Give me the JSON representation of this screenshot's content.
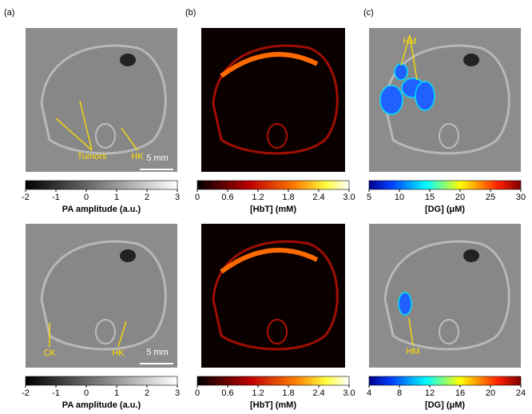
{
  "panel_labels": [
    "(a)",
    "(b)",
    "(c)"
  ],
  "rows": [
    {
      "panels": [
        {
          "annotations": [
            "Tumors",
            "HK"
          ],
          "scale_bar": "5 mm",
          "colorbar": {
            "ticks": [
              "-2",
              "-1",
              "0",
              "1",
              "2",
              "3"
            ],
            "label": "PA amplitude (a.u.)"
          }
        },
        {
          "colorbar": {
            "ticks": [
              "0",
              "0.6",
              "1.2",
              "1.8",
              "2.4",
              "3.0"
            ],
            "label": "[HbT]  (mM)"
          }
        },
        {
          "annotations": [
            "HM"
          ],
          "colorbar": {
            "ticks": [
              "5",
              "10",
              "15",
              "20",
              "25",
              "30"
            ],
            "label": "[DG]  (μM)"
          }
        }
      ]
    },
    {
      "panels": [
        {
          "annotations": [
            "CK",
            "HK"
          ],
          "scale_bar": "5 mm",
          "colorbar": {
            "ticks": [
              "-2",
              "-1",
              "0",
              "1",
              "2",
              "3"
            ],
            "label": "PA amplitude (a.u.)"
          }
        },
        {
          "colorbar": {
            "ticks": [
              "0",
              "0.6",
              "1.2",
              "1.8",
              "2.4",
              "3.0"
            ],
            "label": "[HbT]  (mM)"
          }
        },
        {
          "annotations": [
            "HM"
          ],
          "colorbar": {
            "ticks": [
              "4",
              "8",
              "12",
              "16",
              "20",
              "24"
            ],
            "label": "[DG]  (μM)"
          }
        }
      ]
    }
  ]
}
